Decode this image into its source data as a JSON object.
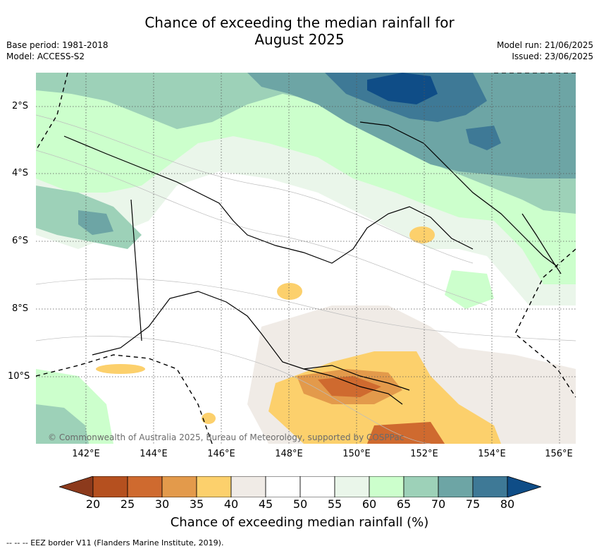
{
  "title_line1": "Chance of exceeding the median rainfall for",
  "title_line2": "August 2025",
  "base_period": "Base period: 1981-2018",
  "model": "Model: ACCESS-S2",
  "model_run": "Model run: 21/06/2025",
  "issued": "Issued: 23/06/2025",
  "lat_labels": [
    "2°S",
    "4°S",
    "6°S",
    "8°S",
    "10°S"
  ],
  "lon_labels": [
    "142°E",
    "144°E",
    "146°E",
    "148°E",
    "150°E",
    "152°E",
    "154°E",
    "156°E"
  ],
  "copyright": "© Commonwealth of Australia 2025, Bureau of Meteorology, supported by COSPPac",
  "colorbar": {
    "ticks": [
      "20",
      "25",
      "30",
      "35",
      "40",
      "45",
      "50",
      "55",
      "60",
      "65",
      "70",
      "75",
      "80"
    ],
    "colors": [
      "#8c3a1c",
      "#b5501f",
      "#cf6a2f",
      "#e39a4b",
      "#fcd06c",
      "#f0ebe6",
      "#ffffff",
      "#ffffff",
      "#eaf6ea",
      "#ccffcc",
      "#9dd1b8",
      "#6da5a5",
      "#3e7996",
      "#0f4d87"
    ],
    "title": "Chance of exceeding median rainfall (%)"
  },
  "footnote": "-- -- -- EEZ border V11 (Flanders Marine Institute, 2019)."
}
